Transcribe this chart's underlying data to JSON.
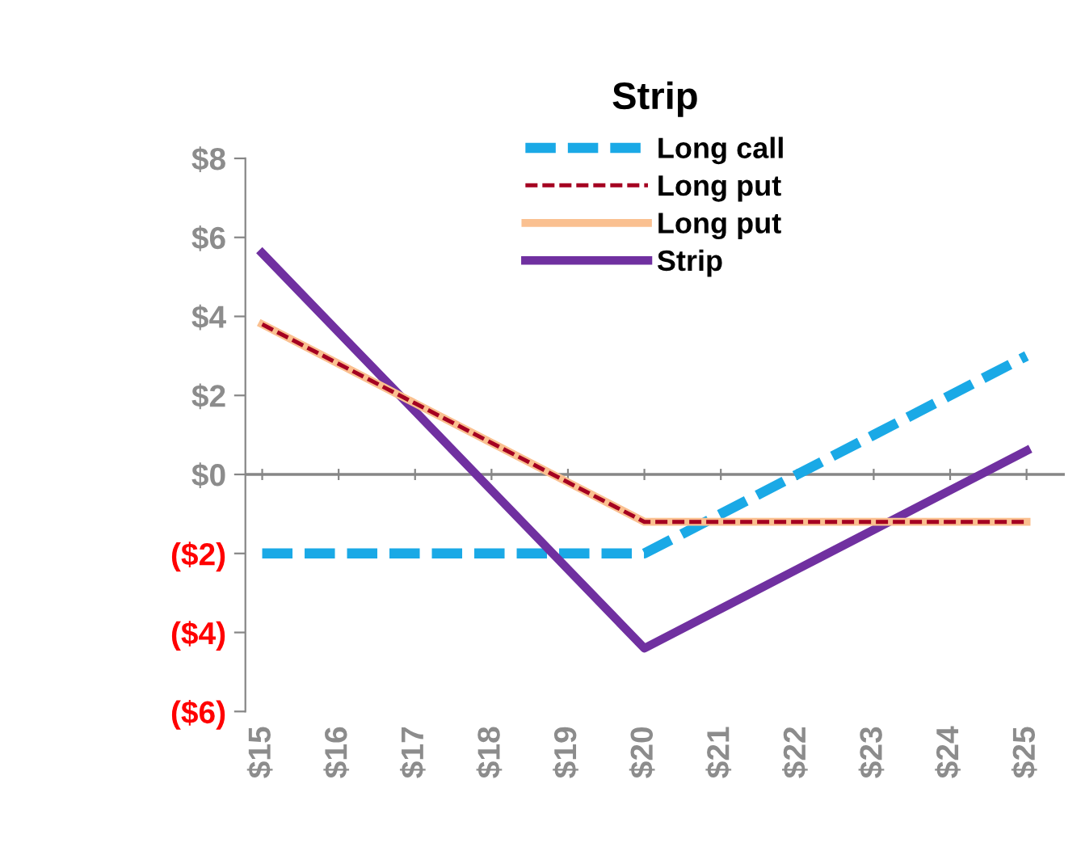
{
  "chart_data": {
    "type": "line",
    "title": "Strip",
    "categories": [
      "$15",
      "$16",
      "$17",
      "$18",
      "$19",
      "$20",
      "$21",
      "$22",
      "$23",
      "$24",
      "$25"
    ],
    "series": [
      {
        "name": "Long call",
        "color": "#1aa9e6",
        "line_style": "dashed",
        "values": [
          -2,
          -2,
          -2,
          -2,
          -2,
          -2,
          -1,
          0,
          1,
          2,
          3
        ]
      },
      {
        "name": "Long put",
        "color": "#a50021",
        "line_style": "dashed",
        "values": [
          3.8,
          2.8,
          1.8,
          0.8,
          -0.2,
          -1.2,
          -1.2,
          -1.2,
          -1.2,
          -1.2,
          -1.2
        ]
      },
      {
        "name": "Long put",
        "color": "#fac090",
        "line_style": "solid",
        "values": [
          3.8,
          2.8,
          1.8,
          0.8,
          -0.2,
          -1.2,
          -1.2,
          -1.2,
          -1.2,
          -1.2,
          -1.2
        ]
      },
      {
        "name": "Strip",
        "color": "#7030a0",
        "line_style": "solid",
        "values": [
          5.6,
          3.6,
          1.6,
          -0.4,
          -2.4,
          -4.4,
          -3.4,
          -2.4,
          -1.4,
          -0.4,
          0.6
        ]
      }
    ],
    "ylim": [
      -6,
      8
    ],
    "yticks": [
      {
        "value": -6,
        "label": "($6)"
      },
      {
        "value": -4,
        "label": "($4)"
      },
      {
        "value": -2,
        "label": "($2)"
      },
      {
        "value": 0,
        "label": "$0"
      },
      {
        "value": 2,
        "label": "$2"
      },
      {
        "value": 4,
        "label": "$4"
      },
      {
        "value": 6,
        "label": "$6"
      },
      {
        "value": 8,
        "label": "$8"
      }
    ],
    "ref_lines": [
      {
        "axis": "y",
        "value": 0,
        "color": "#868686"
      }
    ],
    "grid": false,
    "legend": "top",
    "marker": "none"
  }
}
